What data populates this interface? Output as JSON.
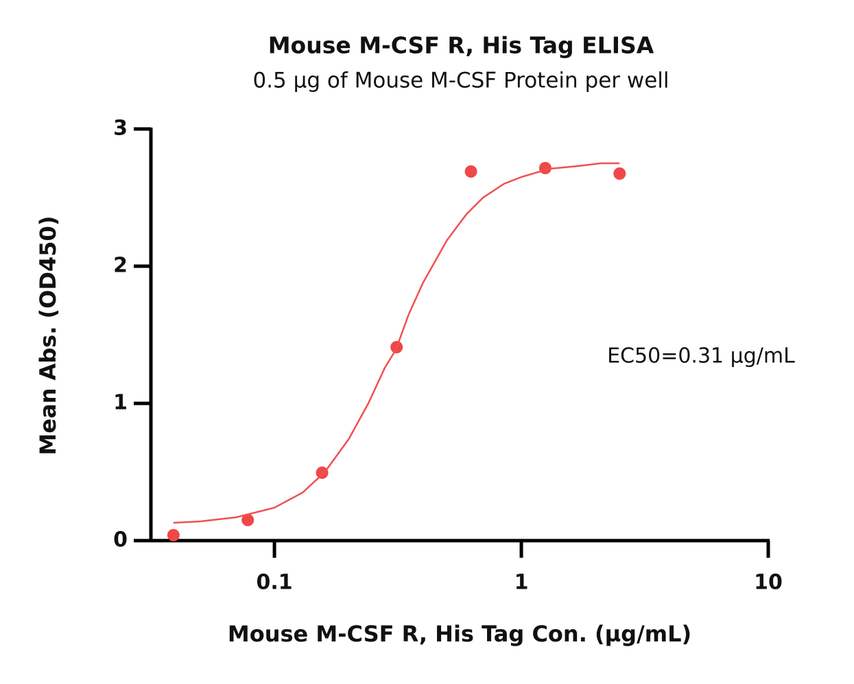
{
  "chart_data": {
    "type": "scatter",
    "title": "Mouse M-CSF R, His Tag ELISA",
    "subtitle": "0.5 µg of Mouse M-CSF Protein per well",
    "x_label": "Mouse M-CSF R, His Tag Con. (µg/mL)",
    "y_label": "Mean Abs. (OD450)",
    "annotation": "EC50=0.31 µg/mL",
    "x_scale": "log",
    "xlim": [
      0.0316,
      10
    ],
    "xticks": [
      0.1,
      1,
      10
    ],
    "ylim": [
      0,
      3
    ],
    "yticks": [
      0,
      1,
      2,
      3
    ],
    "series": [
      {
        "mode": "points",
        "color": "#f04848",
        "x": [
          0.039,
          0.078,
          0.156,
          0.3125,
          0.625,
          1.25,
          2.5
        ],
        "values": [
          0.04,
          0.15,
          0.495,
          1.41,
          2.69,
          2.715,
          2.675
        ]
      },
      {
        "mode": "line",
        "color": "#f05050",
        "x": [
          0.039,
          0.05,
          0.07,
          0.1,
          0.13,
          0.16,
          0.2,
          0.24,
          0.28,
          0.31,
          0.35,
          0.4,
          0.5,
          0.6,
          0.7,
          0.85,
          1,
          1.3,
          1.7,
          2.1,
          2.5
        ],
        "values": [
          0.13,
          0.14,
          0.17,
          0.24,
          0.35,
          0.5,
          0.74,
          1.0,
          1.26,
          1.39,
          1.65,
          1.88,
          2.19,
          2.38,
          2.5,
          2.6,
          2.65,
          2.71,
          2.73,
          2.75,
          2.75
        ]
      }
    ]
  }
}
